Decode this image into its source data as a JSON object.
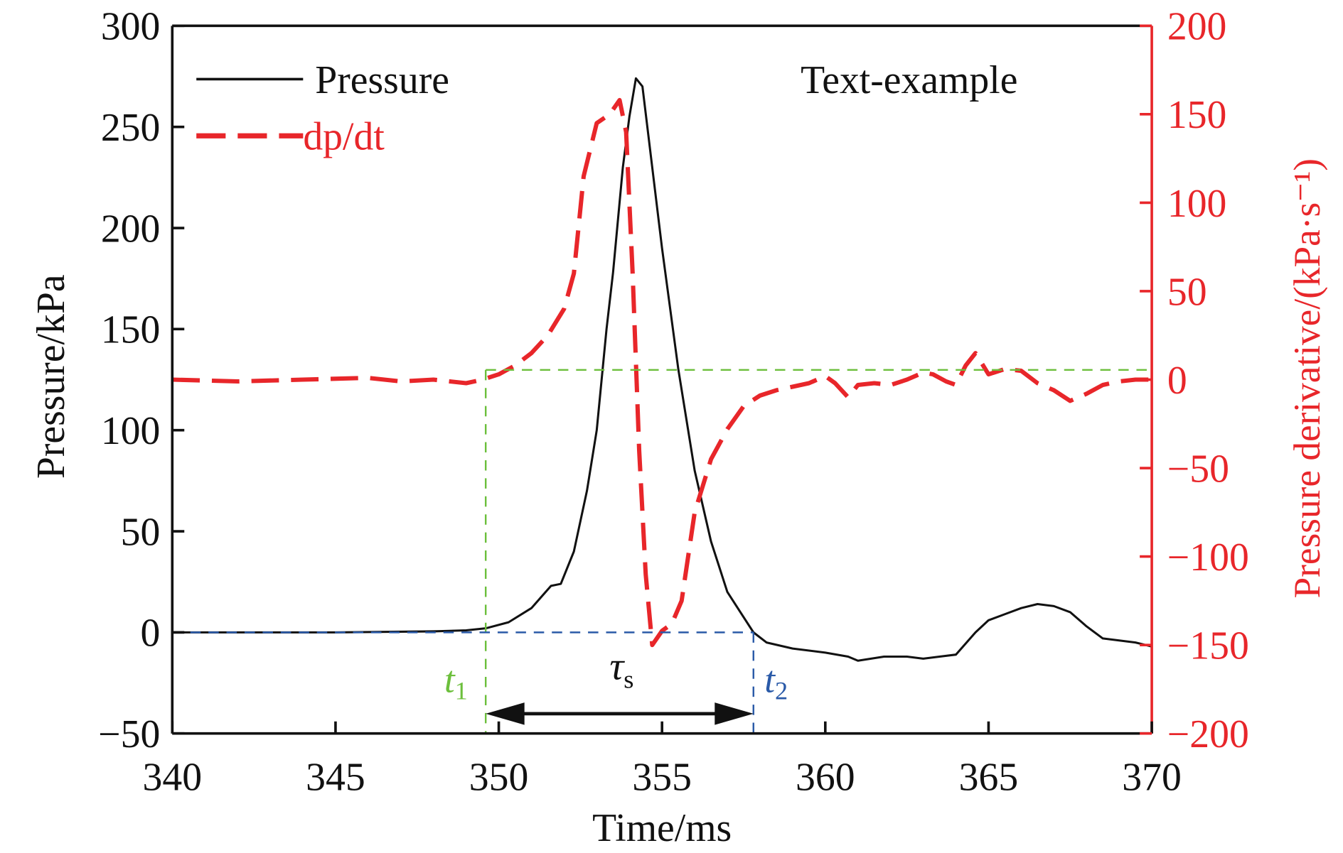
{
  "chart_data": {
    "type": "line",
    "xlabel": "Time/ms",
    "ylabel_left": "Pressure/kPa",
    "ylabel_right": "Pressure derivative/(kPa·s⁻¹)",
    "xlim": [
      340,
      370
    ],
    "ylim_left": [
      -50,
      300
    ],
    "ylim_right": [
      -200,
      200
    ],
    "x_ticks": [
      "340",
      "345",
      "350",
      "355",
      "360",
      "365",
      "370"
    ],
    "y_left_ticks": [
      "300",
      "250",
      "200",
      "150",
      "100",
      "50",
      "0",
      "−50"
    ],
    "y_right_ticks": [
      "200",
      "150",
      "100",
      "50",
      "0",
      "−50",
      "−100",
      "−150",
      "−200"
    ],
    "annotation": "Text-example",
    "legend": {
      "placement": "top-left",
      "entries": [
        "Pressure",
        "dp/dt"
      ]
    },
    "colors": {
      "pressure": "#111111",
      "dpdt": "#e8262a",
      "green": "#6cbf3c",
      "blue": "#2a5aa8"
    },
    "series": [
      {
        "name": "Pressure",
        "axis": "left",
        "x": [
          340,
          345,
          348,
          349,
          349.6,
          350.3,
          351,
          351.6,
          351.9,
          352.3,
          352.7,
          353,
          353.3,
          353.5,
          353.8,
          354,
          354.2,
          354.4,
          354.7,
          355,
          355.5,
          356,
          356.5,
          357,
          357.4,
          357.8,
          358.2,
          359,
          360,
          360.7,
          361,
          361.8,
          362.5,
          363,
          363.5,
          364,
          364.6,
          365,
          365.5,
          366,
          366.5,
          367,
          367.5,
          368,
          368.5,
          369,
          369.5,
          370
        ],
        "y": [
          0,
          0,
          0.5,
          1,
          2,
          5,
          12,
          23,
          24,
          40,
          70,
          100,
          150,
          178,
          230,
          255,
          274,
          270,
          230,
          190,
          130,
          80,
          45,
          20,
          10,
          0,
          -5,
          -8,
          -10,
          -12,
          -14,
          -12,
          -12,
          -13,
          -12,
          -11,
          0,
          6,
          9,
          12,
          14,
          13,
          10,
          3,
          -3,
          -4,
          -5,
          -7
        ]
      },
      {
        "name": "dp/dt",
        "axis": "right",
        "x": [
          340,
          342,
          344,
          346,
          347,
          348,
          349,
          349.5,
          350,
          350.5,
          351,
          351.5,
          352,
          352.3,
          352.6,
          353,
          353.4,
          353.7,
          353.9,
          354.1,
          354.3,
          354.5,
          354.7,
          355,
          355.3,
          355.6,
          356,
          356.5,
          357,
          357.5,
          358,
          358.5,
          359,
          359.5,
          360,
          360.3,
          360.7,
          361,
          361.5,
          362,
          362.5,
          363,
          363.3,
          363.7,
          364,
          364.3,
          364.6,
          365,
          365.5,
          366,
          366.5,
          367,
          367.5,
          368,
          368.5,
          369,
          369.5,
          370
        ],
        "y": [
          0,
          -1,
          0,
          1,
          -1,
          0,
          -2,
          0,
          3,
          8,
          15,
          25,
          40,
          60,
          115,
          145,
          150,
          158,
          140,
          60,
          -40,
          -110,
          -150,
          -142,
          -138,
          -125,
          -75,
          -45,
          -28,
          -15,
          -9,
          -6,
          -4,
          -2,
          2,
          -2,
          -10,
          -3,
          -2,
          -3,
          0,
          4,
          3,
          -1,
          -3,
          8,
          15,
          3,
          6,
          5,
          -2,
          -6,
          -12,
          -8,
          -3,
          -1,
          0,
          0
        ]
      }
    ],
    "markers": {
      "t1_label": "t",
      "t1_sub": "1",
      "t2_label": "t",
      "t2_sub": "2",
      "tau_label": "τ",
      "tau_sub": "s",
      "t1": 349.6,
      "t2": 357.8,
      "threshold_dpdt": 5.5
    }
  }
}
